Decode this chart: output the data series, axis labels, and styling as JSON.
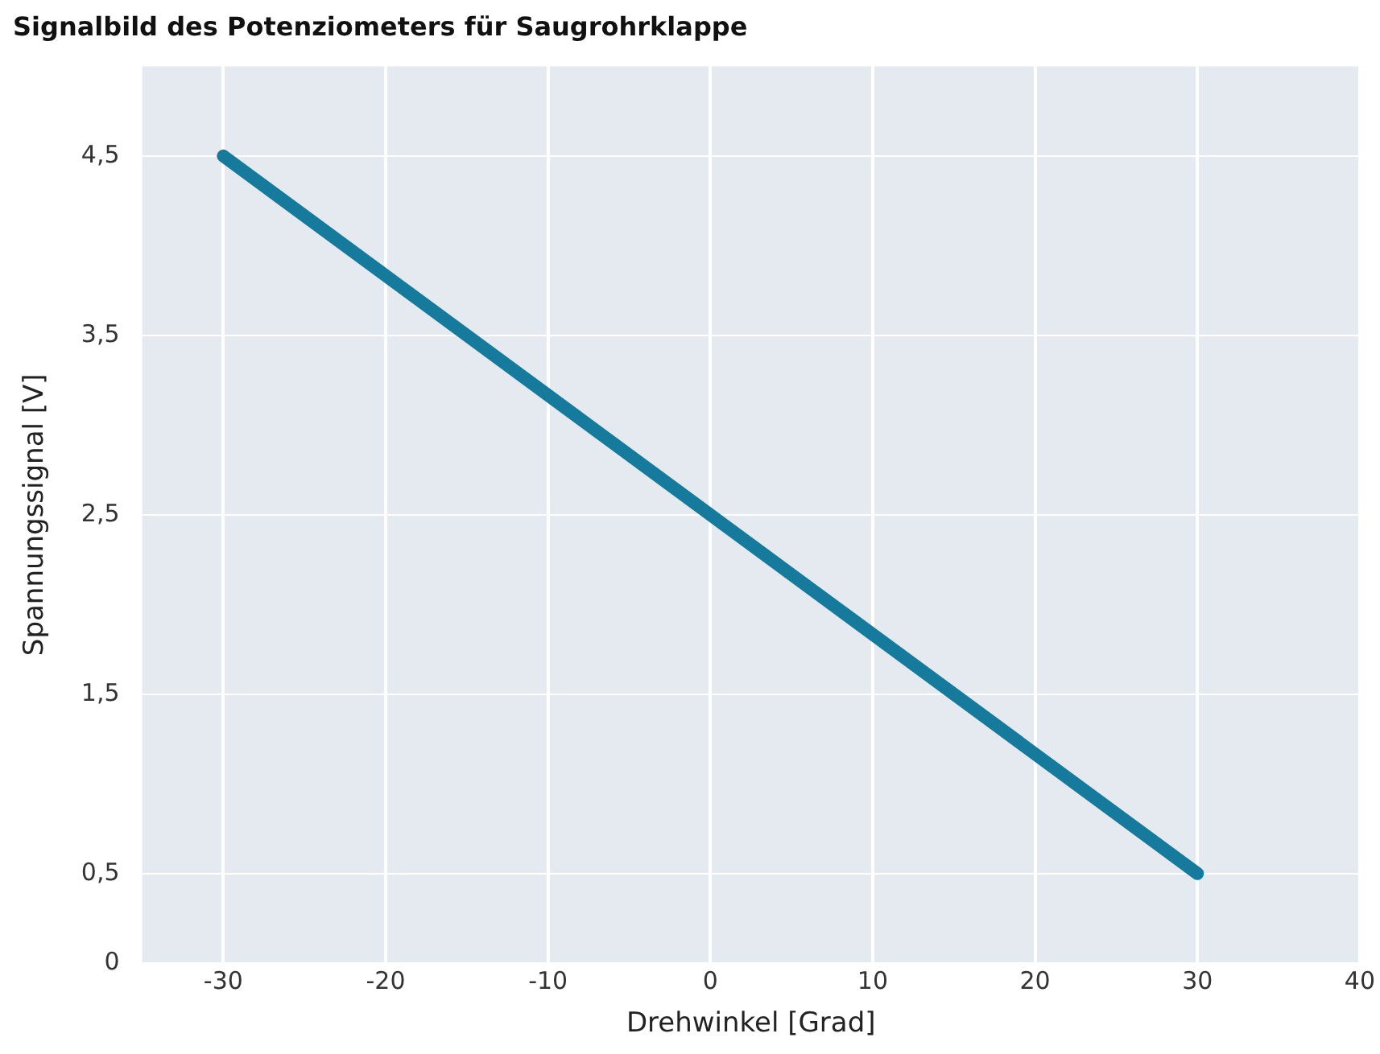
{
  "chart_data": {
    "type": "line",
    "title": "Signalbild des Potenziometers für Saugrohrklappe",
    "xlabel": "Drehwinkel [Grad]",
    "ylabel": "Spannungssignal [V]",
    "x": [
      -30,
      30
    ],
    "series": [
      {
        "color": "#167a9c",
        "values": [
          4.5,
          0.5
        ]
      }
    ],
    "xlim": [
      -35,
      40
    ],
    "xticks": [
      -30,
      -20,
      -10,
      0,
      10,
      20,
      30,
      40
    ],
    "ylim": [
      0,
      5
    ],
    "yticks": [
      0,
      {
        "value": 0.5,
        "label": "0,5"
      },
      {
        "value": 1.5,
        "label": "1,5"
      },
      {
        "value": 2.5,
        "label": "2,5"
      },
      {
        "value": 3.5,
        "label": "3,5"
      },
      {
        "value": 4.5,
        "label": "4,5"
      }
    ],
    "grid": true,
    "legend": false,
    "marker": "none",
    "line_style": "solid"
  }
}
